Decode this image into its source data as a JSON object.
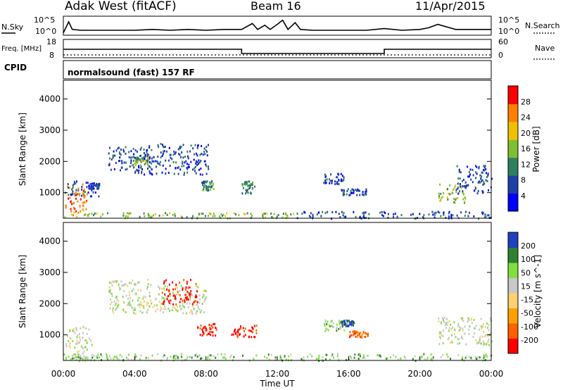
{
  "header": {
    "station": "Adak West (fitACF)",
    "beam": "Beam 16",
    "date": "11/Apr/2015"
  },
  "chart_data": [
    {
      "type": "line",
      "name": "sky-noise-panel",
      "left_label": "N.Sky",
      "right_label": "N.Search",
      "left_ticks": [
        "10^5",
        "10^0"
      ],
      "right_ticks": [
        "10^5",
        "10^0"
      ],
      "x_hours": [
        0,
        0.3,
        0.5,
        1,
        2,
        3,
        4,
        5,
        6,
        7,
        8,
        9,
        10,
        10.6,
        10.9,
        11.3,
        11.6,
        12,
        12.3,
        12.6,
        13,
        13.3,
        14,
        15,
        16,
        17,
        18,
        19,
        20,
        20.5,
        21,
        21.5,
        22,
        23,
        24
      ],
      "sky_level": [
        0.1,
        0.75,
        0.3,
        0.25,
        0.25,
        0.25,
        0.25,
        0.3,
        0.25,
        0.3,
        0.25,
        0.3,
        0.3,
        0.65,
        0.3,
        0.55,
        0.3,
        0.6,
        0.85,
        0.3,
        0.7,
        0.3,
        0.25,
        0.25,
        0.25,
        0.25,
        0.35,
        0.25,
        0.3,
        0.4,
        0.6,
        0.45,
        0.3,
        0.3,
        0.3
      ]
    },
    {
      "type": "line",
      "name": "frequency-nave-panel",
      "left_label": "Freq. [MHz]",
      "right_label": "Nave",
      "left_ticks": [
        "18",
        "8"
      ],
      "right_ticks": [
        "60",
        "0"
      ],
      "freq_mhz_segments": [
        [
          0,
          10,
          13
        ],
        [
          10,
          18,
          10.5
        ],
        [
          18,
          24,
          13
        ]
      ],
      "nave_level": 10
    },
    {
      "type": "table",
      "name": "cpid-panel",
      "label": "CPID",
      "mode_text": "normalsound (fast) 157 RF"
    },
    {
      "type": "heatmap",
      "name": "power-panel",
      "ylabel": "Slant Range [km]",
      "xlim": [
        0,
        24
      ],
      "ylim": [
        180,
        4600
      ],
      "yticks": [
        1000,
        2000,
        3000,
        4000
      ],
      "colorbar_label": "Power [dB]",
      "colorbar_ticks": [
        "28",
        "24",
        "20",
        "16",
        "12",
        "8",
        "4"
      ],
      "colors": [
        "#0000ff",
        "#1f3fa8",
        "#2f7f5f",
        "#7fbf2f",
        "#f0c000",
        "#ff8000",
        "#ff0000"
      ],
      "regions": [
        {
          "x0": 0.1,
          "x1": 1.3,
          "y0": 300,
          "y1": 1300,
          "level": 5
        },
        {
          "x0": 0.0,
          "x1": 2.0,
          "y0": 900,
          "y1": 1400,
          "level": 1
        },
        {
          "x0": 1.4,
          "x1": 2.0,
          "y0": 1150,
          "y1": 1350,
          "level": 1
        },
        {
          "x0": 2.5,
          "x1": 4.5,
          "y0": 1650,
          "y1": 2500,
          "level": 1
        },
        {
          "x0": 3.8,
          "x1": 4.8,
          "y0": 1900,
          "y1": 2200,
          "level": 3
        },
        {
          "x0": 4.5,
          "x1": 8.2,
          "y0": 1600,
          "y1": 2600,
          "level": 1
        },
        {
          "x0": 7.7,
          "x1": 8.4,
          "y0": 1100,
          "y1": 1400,
          "level": 2
        },
        {
          "x0": 10.0,
          "x1": 10.7,
          "y0": 1000,
          "y1": 1400,
          "level": 2
        },
        {
          "x0": 14.5,
          "x1": 15.7,
          "y0": 1300,
          "y1": 1650,
          "level": 1
        },
        {
          "x0": 15.5,
          "x1": 17.0,
          "y0": 950,
          "y1": 1150,
          "level": 1
        },
        {
          "x0": 21.0,
          "x1": 22.7,
          "y0": 700,
          "y1": 1300,
          "level": 3
        },
        {
          "x0": 22.0,
          "x1": 24.0,
          "y0": 1000,
          "y1": 1900,
          "level": 1
        },
        {
          "x0": 13.0,
          "x1": 24.0,
          "y0": 200,
          "y1": 420,
          "level": 1
        },
        {
          "x0": 0.0,
          "x1": 13.0,
          "y0": 200,
          "y1": 380,
          "level": 3
        }
      ]
    },
    {
      "type": "heatmap",
      "name": "velocity-panel",
      "ylabel": "Slant Range [km]",
      "xlabel": "Time UT",
      "xlim": [
        0,
        24
      ],
      "ylim": [
        180,
        4600
      ],
      "yticks": [
        1000,
        2000,
        3000,
        4000
      ],
      "xticks": [
        "00:00",
        "04:00",
        "08:00",
        "12:00",
        "16:00",
        "20:00",
        "00:00"
      ],
      "colorbar_label": "Velocity [m s^-1]",
      "colorbar_ticks": [
        "200",
        "100",
        "50",
        "15",
        "-15",
        "-50",
        "-100",
        "-200"
      ],
      "colors": [
        "#ff0000",
        "#ff6000",
        "#ffa000",
        "#ffd070",
        "#c8c8c8",
        "#80e040",
        "#308030",
        "#2040c0"
      ],
      "regions": [
        {
          "x0": 0.1,
          "x1": 1.6,
          "y0": 200,
          "y1": 1300,
          "level": 4
        },
        {
          "x0": 2.5,
          "x1": 5.0,
          "y0": 1700,
          "y1": 2800,
          "level": 4
        },
        {
          "x0": 5.0,
          "x1": 8.0,
          "y0": 1700,
          "y1": 2600,
          "level": 4
        },
        {
          "x0": 5.5,
          "x1": 7.5,
          "y0": 2000,
          "y1": 2800,
          "level": 0
        },
        {
          "x0": 7.5,
          "x1": 8.6,
          "y0": 1000,
          "y1": 1400,
          "level": 0
        },
        {
          "x0": 9.4,
          "x1": 10.8,
          "y0": 950,
          "y1": 1350,
          "level": 0
        },
        {
          "x0": 14.6,
          "x1": 15.9,
          "y0": 1150,
          "y1": 1500,
          "level": 5
        },
        {
          "x0": 15.6,
          "x1": 16.3,
          "y0": 1300,
          "y1": 1500,
          "level": 7
        },
        {
          "x0": 16.0,
          "x1": 17.1,
          "y0": 950,
          "y1": 1150,
          "level": 1
        },
        {
          "x0": 21.0,
          "x1": 24.0,
          "y0": 700,
          "y1": 1600,
          "level": 4
        },
        {
          "x0": 0.0,
          "x1": 24.0,
          "y0": 200,
          "y1": 420,
          "level": 5
        }
      ]
    }
  ]
}
